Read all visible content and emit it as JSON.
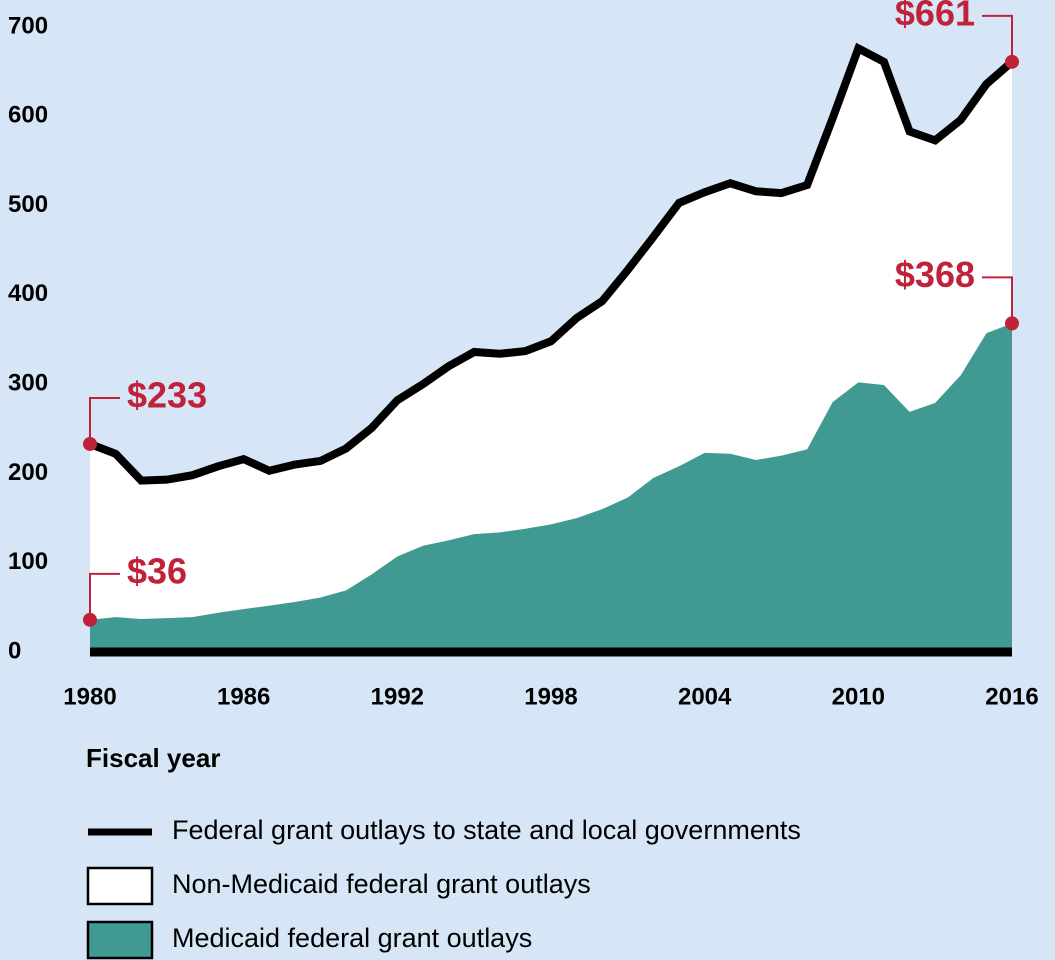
{
  "chart_data": {
    "type": "area",
    "x_label": "Fiscal year",
    "x": [
      1980,
      1981,
      1982,
      1983,
      1984,
      1985,
      1986,
      1987,
      1988,
      1989,
      1990,
      1991,
      1992,
      1993,
      1994,
      1995,
      1996,
      1997,
      1998,
      1999,
      2000,
      2001,
      2002,
      2003,
      2004,
      2005,
      2006,
      2007,
      2008,
      2009,
      2010,
      2011,
      2012,
      2013,
      2014,
      2015,
      2016
    ],
    "xlim": [
      1980,
      2016
    ],
    "xticks": [
      1980,
      1986,
      1992,
      1998,
      2004,
      2010,
      2016
    ],
    "ylim": [
      0,
      700
    ],
    "yticks": [
      0,
      100,
      200,
      300,
      400,
      500,
      600,
      700
    ],
    "background": "#d6e6f6",
    "annotation_color": "#c0223a",
    "series": [
      {
        "name": "Federal grant outlays to state and local governments",
        "style": "line",
        "color": "#000000",
        "values": [
          233,
          222,
          192,
          193,
          198,
          208,
          216,
          203,
          210,
          214,
          228,
          251,
          282,
          300,
          320,
          336,
          334,
          337,
          348,
          374,
          393,
          428,
          465,
          503,
          515,
          525,
          516,
          514,
          523,
          598,
          676,
          661,
          583,
          573,
          596,
          636,
          661
        ],
        "value_labels": [
          "$233",
          null,
          null,
          null,
          null,
          null,
          null,
          null,
          null,
          null,
          null,
          null,
          null,
          null,
          null,
          null,
          null,
          null,
          null,
          null,
          null,
          null,
          null,
          null,
          null,
          null,
          null,
          null,
          null,
          null,
          null,
          null,
          null,
          null,
          null,
          null,
          "$661"
        ]
      },
      {
        "name": "Non-Medicaid federal grant outlays",
        "style": "fill",
        "color": "#ffffff"
      },
      {
        "name": "Medicaid federal grant outlays",
        "style": "area",
        "color": "#419a92",
        "values": [
          36,
          39,
          37,
          38,
          39,
          44,
          48,
          52,
          56,
          61,
          69,
          87,
          107,
          119,
          125,
          132,
          134,
          138,
          143,
          150,
          160,
          173,
          195,
          208,
          223,
          222,
          215,
          220,
          227,
          280,
          302,
          299,
          269,
          279,
          310,
          357,
          368
        ],
        "value_labels": [
          "$36",
          null,
          null,
          null,
          null,
          null,
          null,
          null,
          null,
          null,
          null,
          null,
          null,
          null,
          null,
          null,
          null,
          null,
          null,
          null,
          null,
          null,
          null,
          null,
          null,
          null,
          null,
          null,
          null,
          null,
          null,
          null,
          null,
          null,
          null,
          null,
          "$368"
        ]
      }
    ]
  }
}
